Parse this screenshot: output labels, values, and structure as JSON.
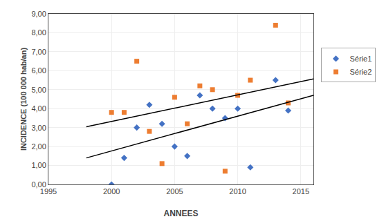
{
  "chart_data": {
    "type": "scatter",
    "x_label": "ANNEES",
    "y_label": "INCIDENCE (100 000 hab/an)",
    "series": [
      {
        "name": "Série1",
        "color": "#4472C4",
        "marker": "diamond",
        "type": "scatter",
        "x": [
          2000,
          2001,
          2002,
          2003,
          2004,
          2005,
          2006,
          2007,
          2008,
          2009,
          2010,
          2011,
          2013,
          2014
        ],
        "values": [
          0.0,
          1.4,
          3.0,
          4.2,
          3.2,
          2.0,
          1.5,
          4.7,
          4.0,
          3.5,
          4.0,
          0.9,
          5.5,
          3.9
        ]
      },
      {
        "name": "Série2",
        "color": "#ED7D31",
        "marker": "square",
        "type": "scatter",
        "x": [
          2000,
          2001,
          2002,
          2003,
          2004,
          2005,
          2006,
          2007,
          2008,
          2009,
          2010,
          2011,
          2013,
          2014
        ],
        "values": [
          3.8,
          3.8,
          6.5,
          2.8,
          1.1,
          4.6,
          3.2,
          5.2,
          5.0,
          0.7,
          4.7,
          5.5,
          8.4,
          4.3
        ]
      },
      {
        "color": "#000000",
        "type": "line",
        "line_style": "solid",
        "x": [
          1998,
          2016
        ],
        "values": [
          1.398,
          4.705
        ]
      },
      {
        "color": "#000000",
        "type": "line",
        "line_style": "solid",
        "x": [
          1998,
          2016
        ],
        "values": [
          3.046,
          5.568
        ]
      }
    ],
    "xlim": [
      1995,
      2016
    ],
    "xticks": [
      1995,
      2000,
      2005,
      2010,
      2015
    ],
    "ylim": [
      0,
      9.0
    ],
    "yticks": [
      {
        "value": 0.0,
        "label": "0,00"
      },
      {
        "value": 1.0,
        "label": "1,00"
      },
      {
        "value": 2.0,
        "label": "2,00"
      },
      {
        "value": 3.0,
        "label": "3,00"
      },
      {
        "value": 4.0,
        "label": "4,00"
      },
      {
        "value": 5.0,
        "label": "5,00"
      },
      {
        "value": 6.0,
        "label": "6,00"
      },
      {
        "value": 7.0,
        "label": "7,00"
      },
      {
        "value": 8.0,
        "label": "8,00"
      },
      {
        "value": 9.0,
        "label": "9,00"
      }
    ],
    "grid": true,
    "legend": "right"
  }
}
